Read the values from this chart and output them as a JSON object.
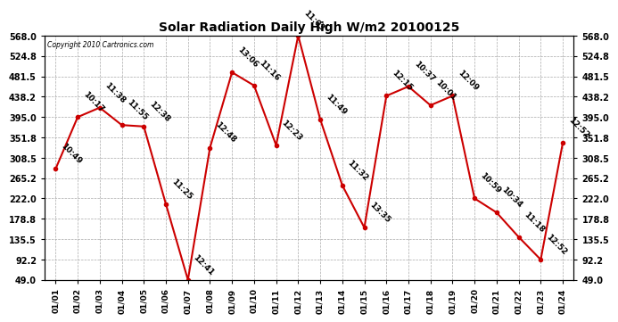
{
  "title": "Solar Radiation Daily High W/m2 20100125",
  "copyright": "Copyright 2010 Cartronics.com",
  "x_labels": [
    "01/01",
    "01/02",
    "01/03",
    "01/04",
    "01/05",
    "01/06",
    "01/07",
    "01/08",
    "01/09",
    "01/10",
    "01/11",
    "01/12",
    "01/13",
    "01/14",
    "01/15",
    "01/16",
    "01/17",
    "01/18",
    "01/19",
    "01/20",
    "01/21",
    "01/22",
    "01/23",
    "01/24"
  ],
  "y_values": [
    285,
    395,
    415,
    378,
    375,
    210,
    49,
    330,
    490,
    462,
    335,
    568,
    390,
    250,
    160,
    440,
    460,
    420,
    440,
    222,
    192,
    140,
    92,
    340
  ],
  "annotations": [
    "10:49",
    "10:17",
    "11:38",
    "11:55",
    "12:38",
    "11:25",
    "12:41",
    "12:48",
    "13:06",
    "11:16",
    "12:23",
    "11:03",
    "11:49",
    "11:32",
    "13:35",
    "12:15",
    "10:37",
    "10:01",
    "12:09",
    "10:59",
    "10:34",
    "11:18",
    "12:52",
    "12:52"
  ],
  "y_min": 49.0,
  "y_max": 568.0,
  "y_ticks": [
    49.0,
    92.2,
    135.5,
    178.8,
    222.0,
    265.2,
    308.5,
    351.8,
    395.0,
    438.2,
    481.5,
    524.8,
    568.0
  ],
  "line_color": "#cc0000",
  "marker_color": "#cc0000",
  "grid_color": "#aaaaaa",
  "bg_color": "#ffffff",
  "plot_bg_color": "#ffffff",
  "title_fontsize": 10,
  "annotation_fontsize": 6.5
}
